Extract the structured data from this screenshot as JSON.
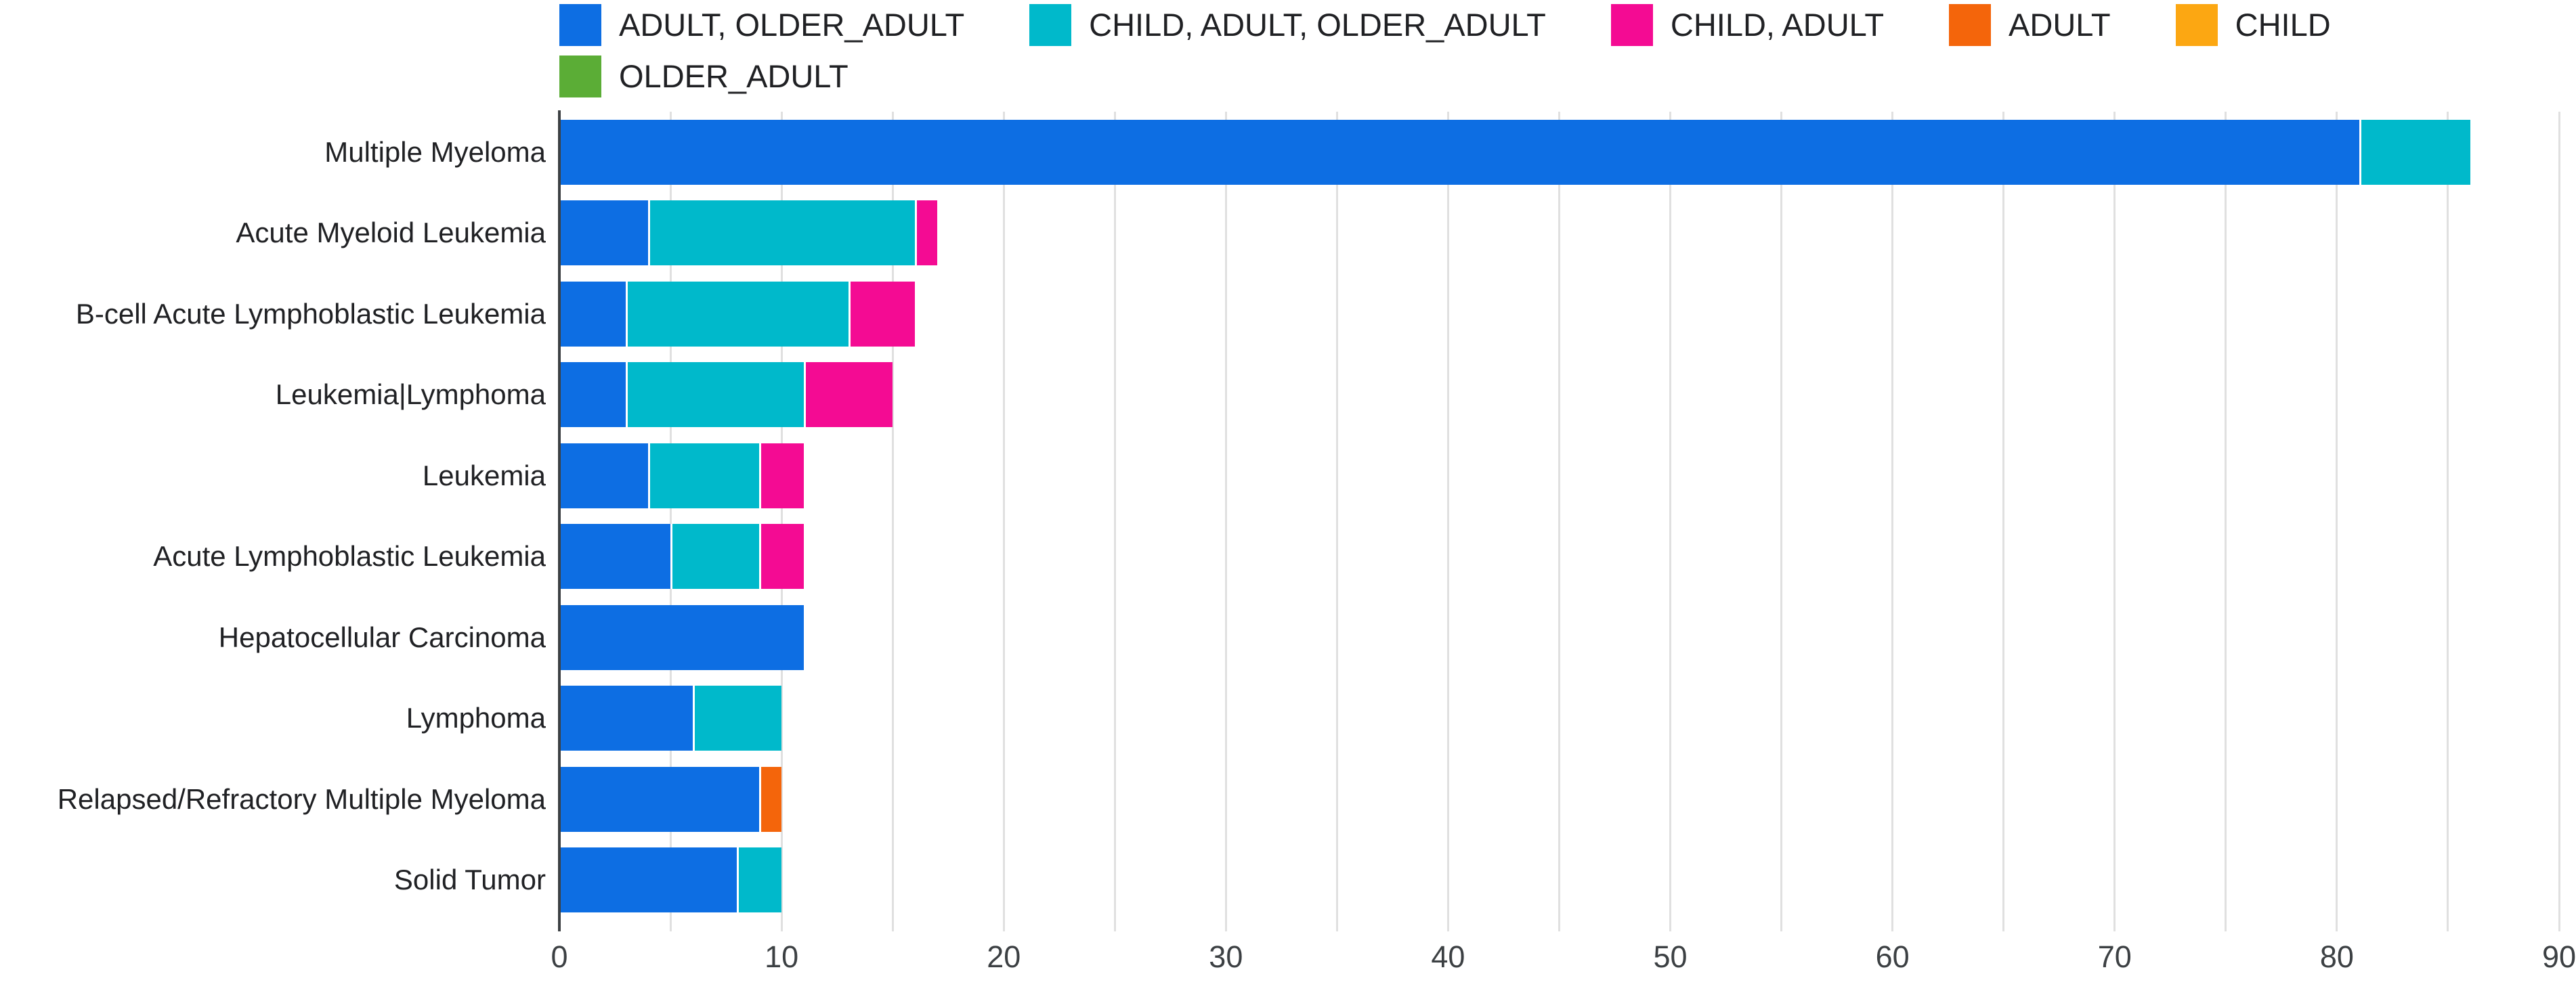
{
  "chart_data": {
    "type": "bar",
    "orientation": "horizontal",
    "stacked": true,
    "title": "",
    "xlabel": "",
    "ylabel": "",
    "xlim": [
      0,
      90
    ],
    "x_tick_labels": [
      0,
      10,
      20,
      30,
      40,
      50,
      60,
      70,
      80,
      90
    ],
    "gridline_step": 5,
    "grid": true,
    "legend_position": "top",
    "categories": [
      "Multiple Myeloma",
      "Acute Myeloid Leukemia",
      "B-cell Acute Lymphoblastic Leukemia",
      "Leukemia|Lymphoma",
      "Leukemia",
      "Acute Lymphoblastic Leukemia",
      "Hepatocellular Carcinoma",
      "Lymphoma",
      "Relapsed/Refractory Multiple Myeloma",
      "Solid Tumor"
    ],
    "series": [
      {
        "name": "ADULT, OLDER_ADULT",
        "color": "#0d6ee3",
        "values": [
          81,
          4,
          3,
          3,
          4,
          5,
          11,
          6,
          9,
          8
        ]
      },
      {
        "name": "CHILD, ADULT, OLDER_ADULT",
        "color": "#00b9cb",
        "values": [
          5,
          12,
          10,
          8,
          5,
          4,
          0,
          4,
          0,
          2
        ]
      },
      {
        "name": "CHILD, ADULT",
        "color": "#f40b93",
        "values": [
          0,
          1,
          3,
          4,
          2,
          2,
          0,
          0,
          0,
          0
        ]
      },
      {
        "name": "ADULT",
        "color": "#f4650b",
        "values": [
          0,
          0,
          0,
          0,
          0,
          0,
          0,
          0,
          1,
          0
        ]
      },
      {
        "name": "CHILD",
        "color": "#fca712",
        "values": [
          0,
          0,
          0,
          0,
          0,
          0,
          0,
          0,
          0,
          0
        ]
      },
      {
        "name": "OLDER_ADULT",
        "color": "#5bad36",
        "values": [
          0,
          0,
          0,
          0,
          0,
          0,
          0,
          0,
          0,
          0
        ]
      }
    ]
  },
  "legend": {
    "rows": [
      [
        "ADULT, OLDER_ADULT",
        "CHILD, ADULT, OLDER_ADULT",
        "CHILD, ADULT",
        "ADULT",
        "CHILD"
      ],
      [
        "OLDER_ADULT"
      ]
    ]
  },
  "colors": {
    "gridline": "#e0e0e0",
    "axis_line": "#3c4043",
    "tick_text": "#3c4043",
    "label_text": "#202124",
    "background": "#ffffff"
  }
}
